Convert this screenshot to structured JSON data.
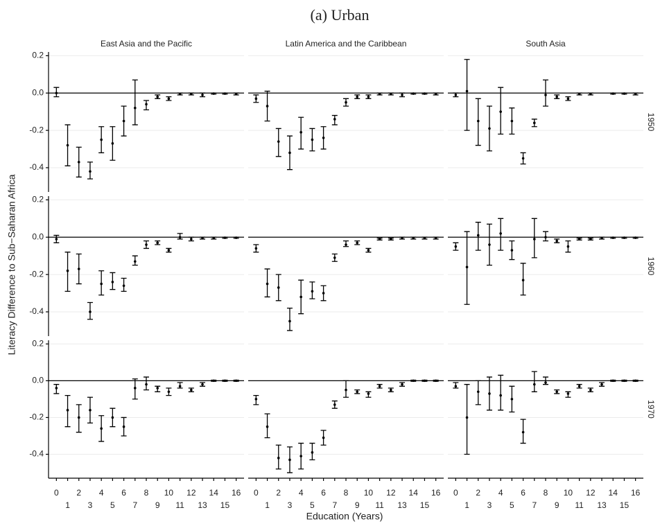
{
  "chart_data": {
    "type": "errorbar",
    "title": "(a) Urban",
    "x_label": "Education (Years)",
    "y_label": "Literacy Difference to Sub−Saharan Africa",
    "columns": [
      "East Asia and the Pacific",
      "Latin America and the Caribbean",
      "South Asia"
    ],
    "rows": [
      "1950",
      "1960",
      "1970"
    ],
    "x": [
      0,
      1,
      2,
      3,
      4,
      5,
      6,
      7,
      8,
      9,
      10,
      11,
      12,
      13,
      14,
      15,
      16
    ],
    "xlim": [
      -0.7,
      16.7
    ],
    "xticks": [
      0,
      1,
      2,
      3,
      4,
      5,
      6,
      7,
      8,
      9,
      10,
      11,
      12,
      13,
      14,
      15,
      16
    ],
    "ylim": [
      -0.53,
      0.22
    ],
    "yticks": [
      0.2,
      {
        "value": 0,
        "label": "0.0"
      },
      -0.2,
      -0.4
    ],
    "reference_line": 0,
    "grid": true,
    "color": "#000000",
    "panels": [
      [
        {
          "values": [
            0.0,
            -0.28,
            -0.37,
            -0.42,
            -0.25,
            -0.27,
            -0.15,
            -0.08,
            -0.06,
            -0.02,
            -0.03,
            -0.005,
            -0.005,
            -0.01,
            -0.003,
            -0.003,
            -0.005
          ],
          "lower": [
            -0.02,
            -0.39,
            -0.45,
            -0.46,
            -0.32,
            -0.36,
            -0.23,
            -0.17,
            -0.09,
            -0.03,
            -0.04,
            -0.01,
            -0.01,
            -0.02,
            -0.006,
            -0.006,
            -0.01
          ],
          "upper": [
            0.03,
            -0.17,
            -0.29,
            -0.37,
            -0.18,
            -0.18,
            -0.07,
            0.07,
            -0.04,
            -0.01,
            -0.02,
            0,
            0,
            0,
            0,
            0,
            0
          ]
        },
        {
          "values": [
            -0.03,
            -0.07,
            -0.26,
            -0.32,
            -0.21,
            -0.25,
            -0.24,
            -0.14,
            -0.05,
            -0.02,
            -0.02,
            -0.005,
            -0.005,
            -0.01,
            -0.003,
            -0.003,
            -0.005
          ],
          "lower": [
            -0.05,
            -0.15,
            -0.34,
            -0.41,
            -0.3,
            -0.31,
            -0.3,
            -0.17,
            -0.07,
            -0.03,
            -0.03,
            -0.01,
            -0.01,
            -0.02,
            -0.006,
            -0.006,
            -0.01
          ],
          "upper": [
            -0.01,
            0.01,
            -0.19,
            -0.23,
            -0.13,
            -0.19,
            -0.18,
            -0.12,
            -0.03,
            -0.01,
            -0.01,
            0,
            0,
            0,
            0,
            0,
            0
          ]
        },
        {
          "values": [
            -0.01,
            0.01,
            -0.15,
            -0.19,
            -0.1,
            -0.15,
            -0.35,
            -0.16,
            -0.01,
            -0.02,
            -0.03,
            -0.005,
            -0.005,
            null,
            -0.003,
            -0.003,
            -0.005
          ],
          "lower": [
            -0.02,
            -0.2,
            -0.28,
            -0.31,
            -0.22,
            -0.22,
            -0.38,
            -0.18,
            -0.07,
            -0.03,
            -0.04,
            -0.01,
            -0.01,
            null,
            -0.006,
            -0.006,
            -0.01
          ],
          "upper": [
            0,
            0.18,
            -0.03,
            -0.07,
            0.03,
            -0.08,
            -0.32,
            -0.14,
            0.07,
            -0.01,
            -0.02,
            0,
            0,
            null,
            0,
            0,
            0
          ]
        }
      ],
      [
        {
          "values": [
            -0.01,
            -0.18,
            -0.17,
            -0.4,
            -0.25,
            -0.24,
            -0.26,
            -0.13,
            -0.04,
            -0.03,
            -0.07,
            0.0,
            -0.01,
            -0.005,
            -0.005,
            -0.003,
            -0.003
          ],
          "lower": [
            -0.03,
            -0.29,
            -0.25,
            -0.44,
            -0.31,
            -0.28,
            -0.29,
            -0.15,
            -0.06,
            -0.04,
            -0.08,
            -0.01,
            -0.02,
            -0.01,
            -0.01,
            -0.006,
            -0.006
          ],
          "upper": [
            0.01,
            -0.08,
            -0.09,
            -0.35,
            -0.18,
            -0.19,
            -0.22,
            -0.1,
            -0.02,
            -0.02,
            -0.06,
            0.02,
            0,
            0,
            0,
            0,
            0
          ]
        },
        {
          "values": [
            -0.06,
            -0.25,
            -0.27,
            -0.45,
            -0.32,
            -0.29,
            -0.3,
            -0.11,
            -0.04,
            -0.03,
            -0.07,
            -0.01,
            -0.01,
            -0.005,
            -0.005,
            -0.005,
            -0.005
          ],
          "lower": [
            -0.08,
            -0.32,
            -0.34,
            -0.5,
            -0.41,
            -0.33,
            -0.34,
            -0.13,
            -0.05,
            -0.04,
            -0.08,
            -0.015,
            -0.015,
            -0.01,
            -0.01,
            -0.01,
            -0.01
          ],
          "upper": [
            -0.04,
            -0.17,
            -0.2,
            -0.38,
            -0.23,
            -0.24,
            -0.26,
            -0.09,
            -0.02,
            -0.02,
            -0.06,
            -0.005,
            -0.005,
            0,
            0,
            0,
            0
          ]
        },
        {
          "values": [
            -0.05,
            -0.16,
            0.01,
            -0.04,
            0.02,
            -0.07,
            -0.23,
            -0.01,
            0.0,
            -0.02,
            -0.05,
            -0.01,
            -0.01,
            -0.005,
            -0.003,
            -0.003,
            -0.003
          ],
          "lower": [
            -0.07,
            -0.36,
            -0.07,
            -0.15,
            -0.07,
            -0.12,
            -0.31,
            -0.11,
            -0.02,
            -0.03,
            -0.08,
            -0.015,
            -0.015,
            -0.01,
            -0.006,
            -0.006,
            -0.006
          ],
          "upper": [
            -0.03,
            0.03,
            0.08,
            0.07,
            0.1,
            -0.02,
            -0.14,
            0.1,
            0.03,
            -0.01,
            -0.02,
            -0.005,
            -0.005,
            0,
            0,
            0,
            0
          ]
        }
      ],
      [
        {
          "values": [
            -0.04,
            -0.16,
            -0.2,
            -0.16,
            -0.26,
            -0.2,
            -0.25,
            -0.04,
            -0.02,
            -0.04,
            -0.06,
            -0.03,
            -0.05,
            -0.02,
            0.0,
            0.0,
            0.0
          ],
          "lower": [
            -0.07,
            -0.25,
            -0.28,
            -0.23,
            -0.33,
            -0.25,
            -0.3,
            -0.1,
            -0.05,
            -0.06,
            -0.08,
            -0.04,
            -0.06,
            -0.03,
            -0.003,
            -0.003,
            -0.003
          ],
          "upper": [
            -0.02,
            -0.08,
            -0.13,
            -0.09,
            -0.19,
            -0.15,
            -0.2,
            0.01,
            0.02,
            -0.03,
            -0.04,
            -0.01,
            -0.04,
            -0.01,
            0.003,
            0.003,
            0.003
          ]
        },
        {
          "values": [
            -0.1,
            -0.25,
            -0.42,
            -0.43,
            -0.41,
            -0.39,
            -0.31,
            -0.13,
            -0.05,
            -0.06,
            -0.07,
            -0.03,
            -0.05,
            -0.02,
            0.0,
            0.0,
            0.0
          ],
          "lower": [
            -0.13,
            -0.31,
            -0.48,
            -0.5,
            -0.48,
            -0.43,
            -0.35,
            -0.15,
            -0.09,
            -0.07,
            -0.09,
            -0.04,
            -0.06,
            -0.03,
            -0.003,
            -0.003,
            -0.003
          ],
          "upper": [
            -0.08,
            -0.18,
            -0.35,
            -0.36,
            -0.34,
            -0.34,
            -0.27,
            -0.11,
            0.0,
            -0.05,
            -0.06,
            -0.02,
            -0.04,
            -0.01,
            0.003,
            0.003,
            0.003
          ]
        },
        {
          "values": [
            -0.03,
            -0.2,
            -0.06,
            -0.07,
            -0.08,
            -0.1,
            -0.28,
            -0.02,
            -0.01,
            -0.06,
            -0.07,
            -0.03,
            -0.05,
            -0.02,
            0.0,
            0.0,
            0.0
          ],
          "lower": [
            -0.04,
            -0.4,
            -0.13,
            -0.16,
            -0.16,
            -0.17,
            -0.34,
            -0.06,
            -0.02,
            -0.07,
            -0.09,
            -0.04,
            -0.06,
            -0.03,
            -0.003,
            -0.003,
            -0.003
          ],
          "upper": [
            -0.01,
            -0.02,
            0.0,
            0.02,
            0.03,
            -0.03,
            -0.21,
            0.05,
            0.02,
            -0.05,
            -0.06,
            -0.02,
            -0.04,
            -0.01,
            0.003,
            0.003,
            0.003
          ]
        }
      ]
    ]
  }
}
